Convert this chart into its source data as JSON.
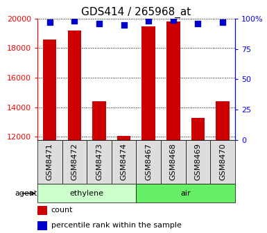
{
  "title": "GDS414 / 265968_at",
  "samples": [
    "GSM8471",
    "GSM8472",
    "GSM8473",
    "GSM8474",
    "GSM8467",
    "GSM8468",
    "GSM8469",
    "GSM8470"
  ],
  "counts": [
    18600,
    19200,
    14400,
    12050,
    19500,
    19800,
    13300,
    14400
  ],
  "percentiles": [
    97,
    98,
    96,
    95,
    98,
    99,
    96,
    97
  ],
  "groups": [
    {
      "label": "ethylene",
      "indices": [
        0,
        1,
        2,
        3
      ],
      "color": "#ccffcc"
    },
    {
      "label": "air",
      "indices": [
        4,
        5,
        6,
        7
      ],
      "color": "#66ee66"
    }
  ],
  "bar_color": "#cc0000",
  "dot_color": "#0000cc",
  "ylim_left": [
    11800,
    20000
  ],
  "ylim_right": [
    0,
    100
  ],
  "yticks_left": [
    12000,
    14000,
    16000,
    18000,
    20000
  ],
  "yticks_right": [
    0,
    25,
    50,
    75,
    100
  ],
  "ytick_labels_right": [
    "0",
    "25",
    "50",
    "75",
    "100%"
  ],
  "grid_y": [
    12000,
    14000,
    16000,
    18000,
    20000
  ],
  "bar_width": 0.55,
  "dot_size": 40,
  "title_fontsize": 11,
  "tick_fontsize": 8,
  "label_fontsize": 8,
  "agent_label": "agent",
  "legend_count": "count",
  "legend_percentile": "percentile rank within the sample"
}
